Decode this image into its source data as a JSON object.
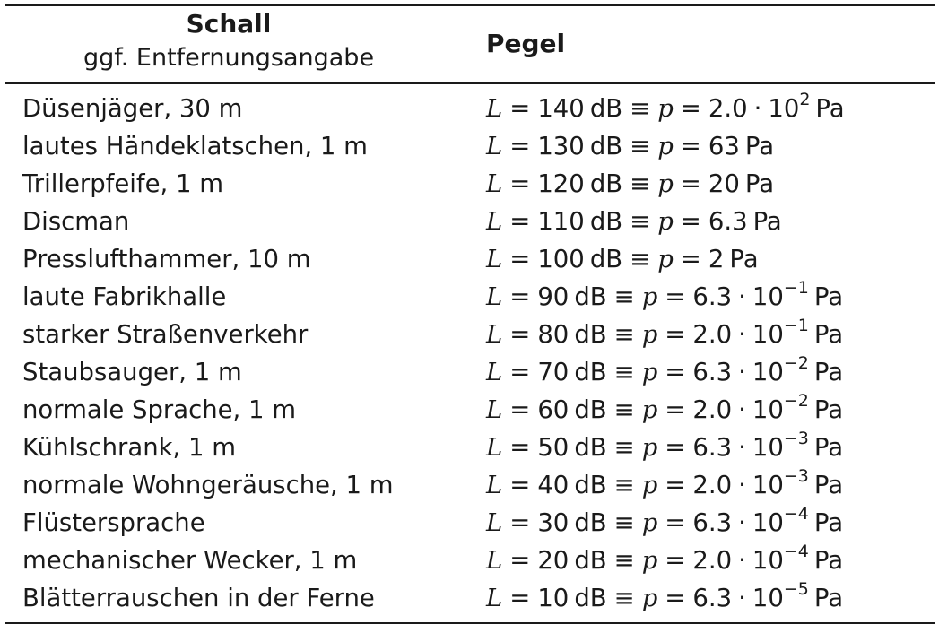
{
  "header": {
    "col1_title": "Schall",
    "col1_subtitle": "ggf. Entfernungsangabe",
    "col2_title": "Pegel"
  },
  "symbols": {
    "level": "L",
    "pressure": "p",
    "equals": "=",
    "equiv": "≡",
    "times": "·",
    "level_unit": "dB",
    "pressure_unit": "Pa",
    "base": "10"
  },
  "rows": [
    {
      "source": "Düsenjäger, 30 m",
      "level": "140",
      "mantissa": "2.0",
      "exponent": "2"
    },
    {
      "source": "lautes Händeklatschen, 1 m",
      "level": "130",
      "pressure": "63"
    },
    {
      "source": "Trillerpfeife, 1 m",
      "level": "120",
      "pressure": "20"
    },
    {
      "source": "Discman",
      "level": "110",
      "pressure": "6.3"
    },
    {
      "source": "Presslufthammer, 10 m",
      "level": "100",
      "pressure": "2"
    },
    {
      "source": "laute Fabrikhalle",
      "level": "90",
      "mantissa": "6.3",
      "exponent": "−1"
    },
    {
      "source": "starker Straßenverkehr",
      "level": "80",
      "mantissa": "2.0",
      "exponent": "−1"
    },
    {
      "source": "Staubsauger, 1 m",
      "level": "70",
      "mantissa": "6.3",
      "exponent": "−2"
    },
    {
      "source": "normale Sprache, 1 m",
      "level": "60",
      "mantissa": "2.0",
      "exponent": "−2"
    },
    {
      "source": "Kühlschrank, 1 m",
      "level": "50",
      "mantissa": "6.3",
      "exponent": "−3"
    },
    {
      "source": "normale Wohngeräusche, 1 m",
      "level": "40",
      "mantissa": "2.0",
      "exponent": "−3"
    },
    {
      "source": "Flüstersprache",
      "level": "30",
      "mantissa": "6.3",
      "exponent": "−4"
    },
    {
      "source": "mechanischer Wecker, 1 m",
      "level": "20",
      "mantissa": "2.0",
      "exponent": "−4"
    },
    {
      "source": "Blätterrauschen in der Ferne",
      "level": "10",
      "mantissa": "6.3",
      "exponent": "−5"
    }
  ]
}
